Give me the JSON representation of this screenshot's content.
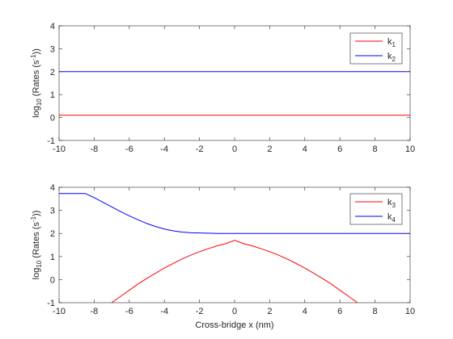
{
  "chart_data": [
    {
      "type": "line",
      "xlabel": "",
      "ylabel": "log10 (Rates (s-1))",
      "ylabel_parts": [
        "log",
        "10",
        " (Rates (s",
        "-1",
        "))"
      ],
      "xlim": [
        -10,
        10
      ],
      "ylim": [
        -1,
        4
      ],
      "xticks": [
        -10,
        -8,
        -6,
        -4,
        -2,
        0,
        2,
        4,
        6,
        8,
        10
      ],
      "yticks": [
        -1,
        0,
        1,
        2,
        3,
        4
      ],
      "grid": false,
      "legend_position": "top-right",
      "series": [
        {
          "name": "k1",
          "name_base": "k",
          "name_sub": "1",
          "color": "#ff0000",
          "x": [
            -10,
            10
          ],
          "y": [
            0.1,
            0.1
          ]
        },
        {
          "name": "k2",
          "name_base": "k",
          "name_sub": "2",
          "color": "#0000ff",
          "x": [
            -10,
            10
          ],
          "y": [
            2.0,
            2.0
          ]
        }
      ]
    },
    {
      "type": "line",
      "xlabel": "Cross-bridge x (nm)",
      "ylabel": "log10 (Rates (s-1))",
      "ylabel_parts": [
        "log",
        "10",
        " (Rates (s",
        "-1",
        "))"
      ],
      "xlim": [
        -10,
        10
      ],
      "ylim": [
        -1,
        4
      ],
      "xticks": [
        -10,
        -8,
        -6,
        -4,
        -2,
        0,
        2,
        4,
        6,
        8,
        10
      ],
      "yticks": [
        -1,
        0,
        1,
        2,
        3,
        4
      ],
      "grid": false,
      "legend_position": "top-right",
      "series": [
        {
          "name": "k3",
          "name_base": "k",
          "name_sub": "3",
          "color": "#ff0000",
          "x": [
            -7.0,
            -6.5,
            -6,
            -5.5,
            -5,
            -4.5,
            -4,
            -3.5,
            -3,
            -2.5,
            -2,
            -1.5,
            -1,
            -0.5,
            0,
            0.5,
            1,
            1.5,
            2,
            2.5,
            3,
            3.5,
            4,
            4.5,
            5,
            5.5,
            6,
            6.5,
            7.0
          ],
          "y": [
            -1.0,
            -0.73,
            -0.46,
            -0.19,
            0.05,
            0.28,
            0.5,
            0.7,
            0.89,
            1.06,
            1.21,
            1.34,
            1.46,
            1.56,
            1.7,
            1.56,
            1.46,
            1.34,
            1.21,
            1.06,
            0.89,
            0.7,
            0.5,
            0.28,
            0.05,
            -0.19,
            -0.46,
            -0.73,
            -1.0
          ]
        },
        {
          "name": "k4",
          "name_base": "k",
          "name_sub": "4",
          "color": "#0000ff",
          "x": [
            -10,
            -8.5,
            -8,
            -7.5,
            -7,
            -6.5,
            -6,
            -5.5,
            -5,
            -4.5,
            -4,
            -3.5,
            -3,
            -2.5,
            -2,
            -1.5,
            -1,
            0,
            2,
            4,
            6,
            8,
            10
          ],
          "y": [
            3.73,
            3.73,
            3.55,
            3.35,
            3.15,
            2.95,
            2.76,
            2.59,
            2.43,
            2.3,
            2.19,
            2.11,
            2.06,
            2.03,
            2.02,
            2.01,
            2.0,
            2.0,
            2.0,
            2.0,
            2.0,
            2.0,
            2.0
          ]
        }
      ]
    }
  ]
}
